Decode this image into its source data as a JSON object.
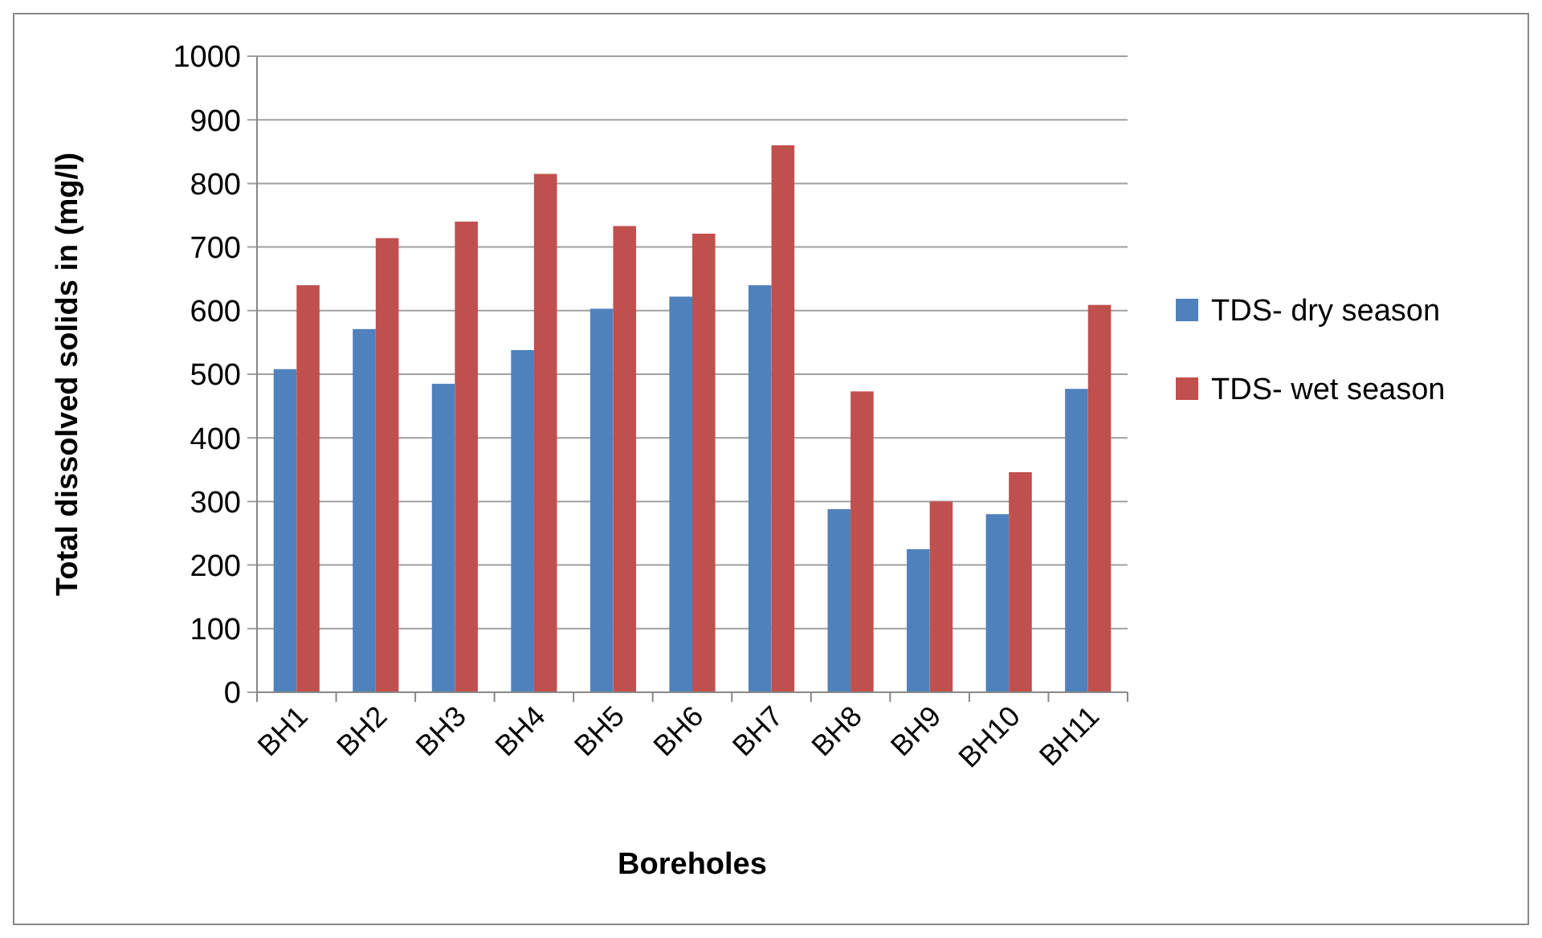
{
  "chart_data": {
    "type": "bar",
    "xlabel": "Boreholes",
    "ylabel": "Total dissolved solids in (mg/l)",
    "categories": [
      "BH1",
      "BH2",
      "BH3",
      "BH4",
      "BH5",
      "BH6",
      "BH7",
      "BH8",
      "BH9",
      "BH10",
      "BH11"
    ],
    "series": [
      {
        "name": "TDS- dry season",
        "color": "#4f81bd",
        "values": [
          508,
          571,
          485,
          538,
          603,
          622,
          640,
          288,
          225,
          280,
          477
        ]
      },
      {
        "name": "TDS- wet season",
        "color": "#c0504d",
        "values": [
          640,
          714,
          740,
          815,
          733,
          721,
          860,
          473,
          300,
          346,
          609
        ]
      }
    ],
    "ylim": [
      0,
      1000
    ],
    "yticks": [
      0,
      100,
      200,
      300,
      400,
      500,
      600,
      700,
      800,
      900,
      1000
    ],
    "grid": "y",
    "legend": "right"
  }
}
